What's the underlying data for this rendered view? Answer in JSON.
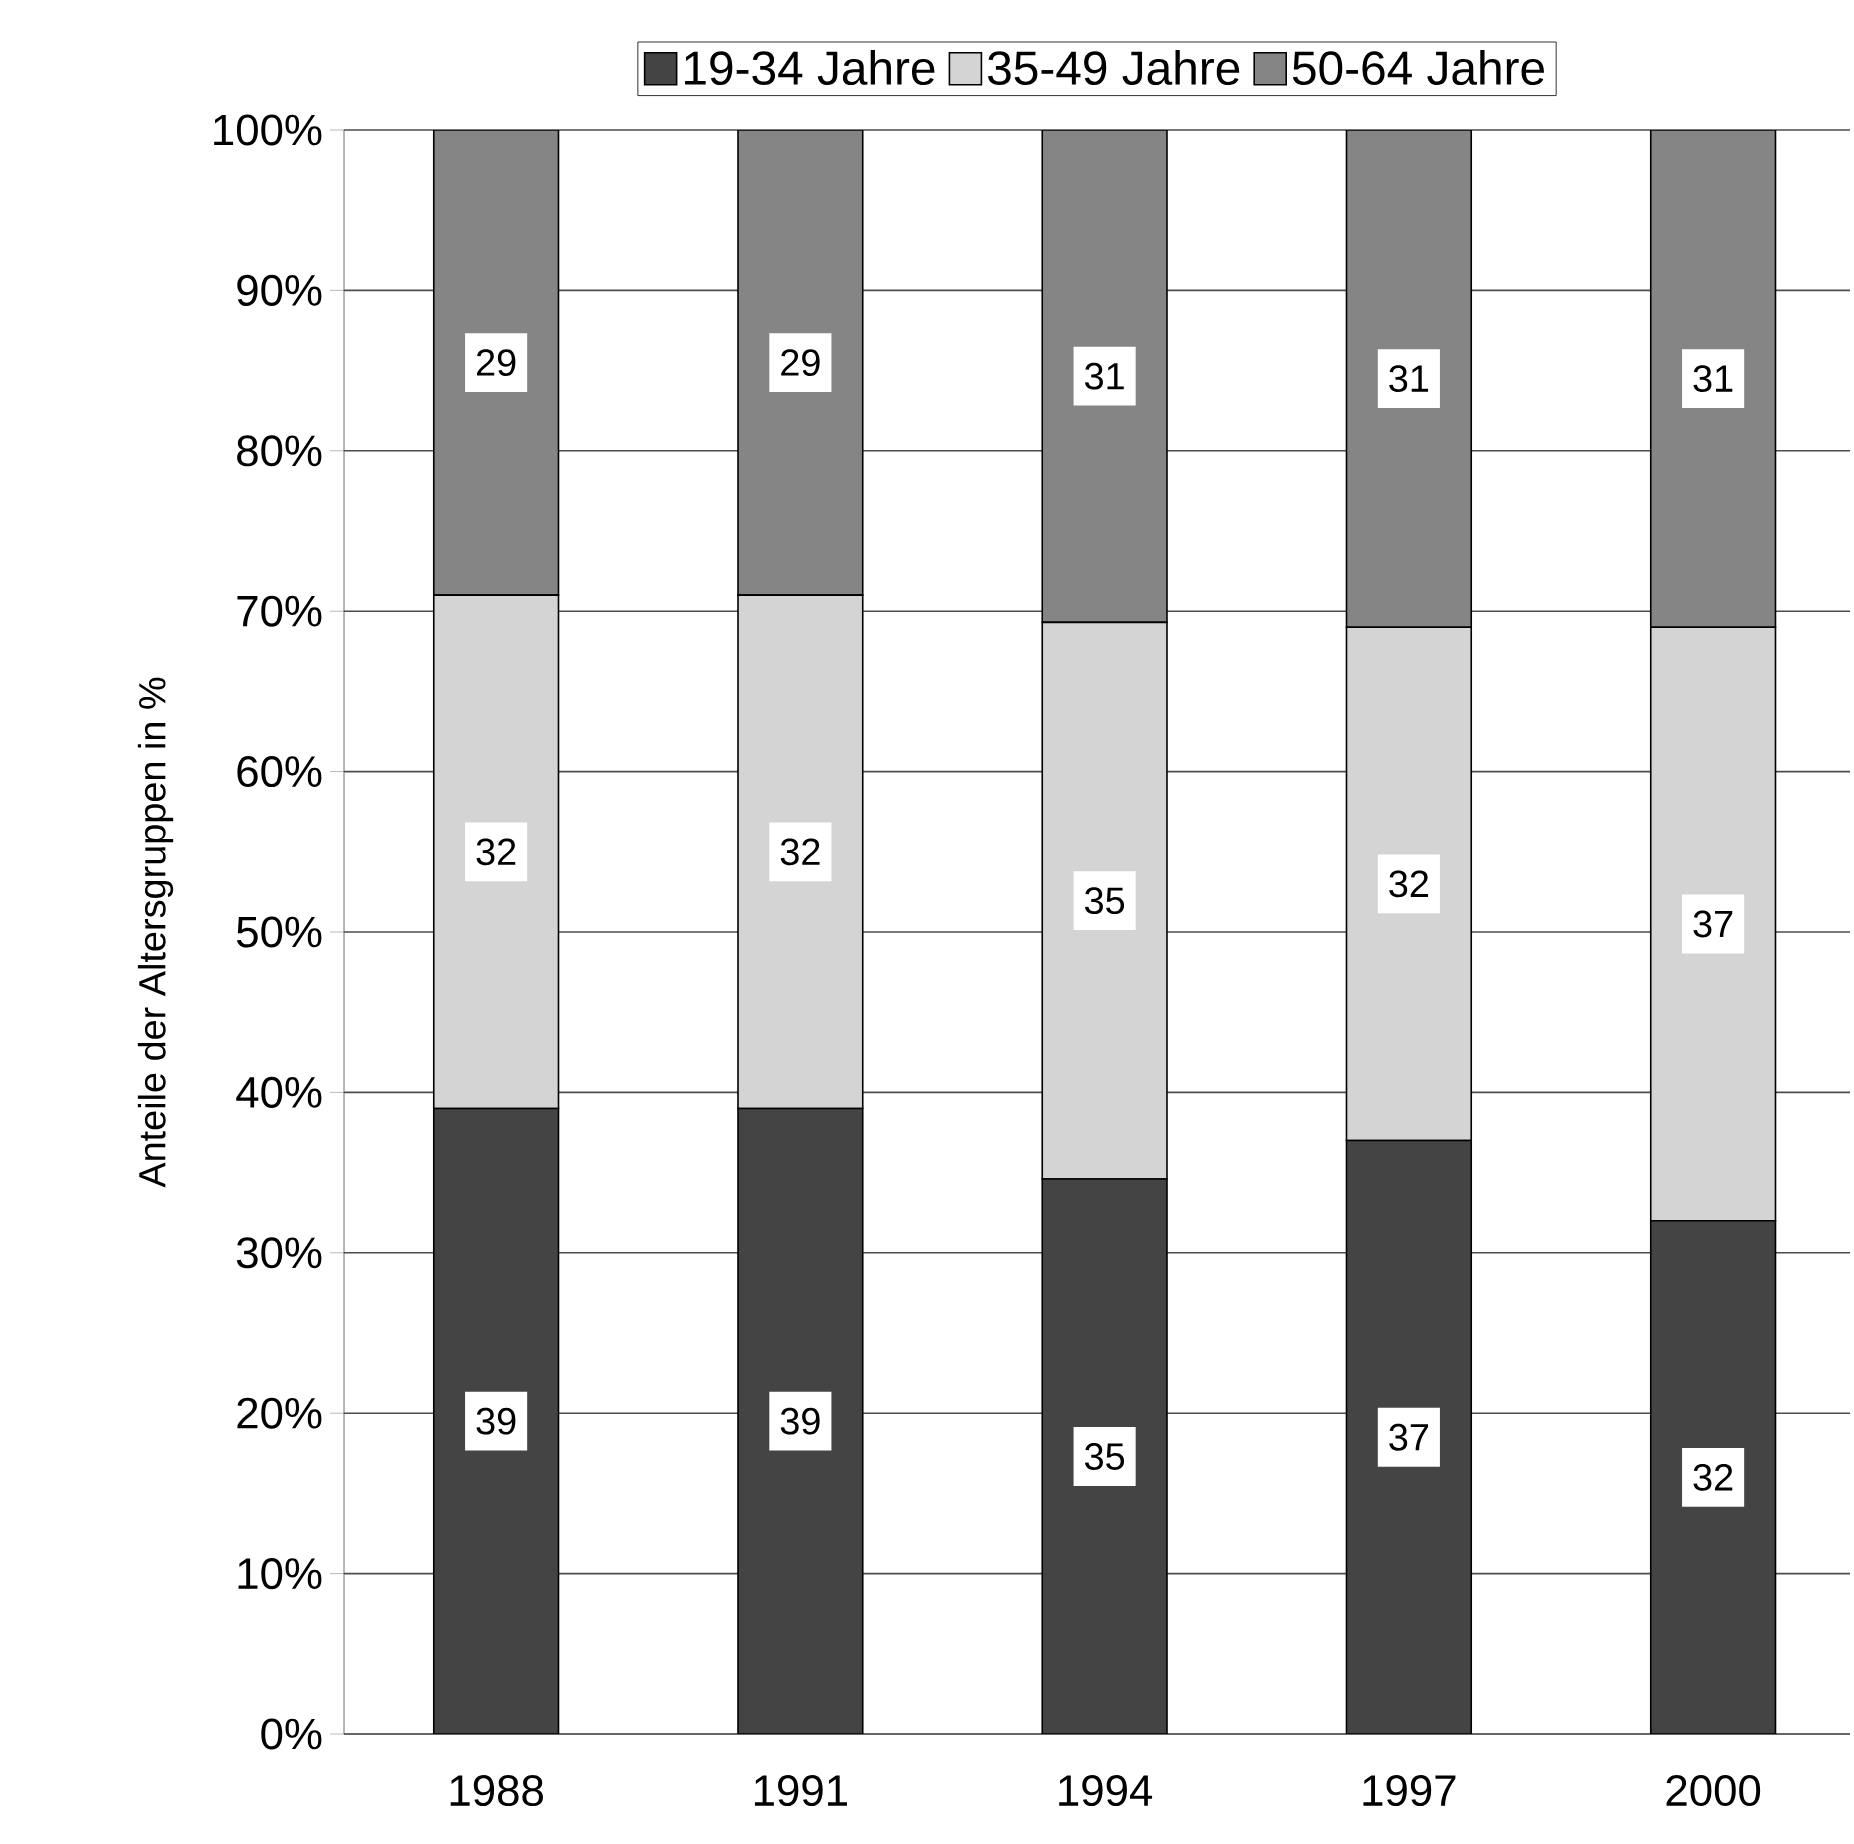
{
  "chart_data": {
    "type": "bar",
    "stacked": true,
    "ylabel": "Anteile der Altersgruppen in %",
    "categories": [
      "1988",
      "1991",
      "1994",
      "1997",
      "2000"
    ],
    "series": [
      {
        "name": "19-34 Jahre",
        "color": "#444444",
        "values": [
          39,
          39,
          34.6,
          37,
          32
        ],
        "value_labels": [
          "39",
          "39",
          "35",
          "37",
          "32"
        ]
      },
      {
        "name": "35-49 Jahre",
        "color": "#d4d4d4",
        "values": [
          32,
          32,
          34.7,
          32,
          37
        ],
        "value_labels": [
          "32",
          "32",
          "35",
          "32",
          "37"
        ]
      },
      {
        "name": "50-64 Jahre",
        "color": "#858585",
        "values": [
          29,
          29,
          30.7,
          31,
          31
        ],
        "value_labels": [
          "29",
          "29",
          "31",
          "31",
          "31"
        ]
      }
    ],
    "ylim": [
      0,
      100
    ],
    "yticks": [
      {
        "value": 0,
        "label": "0%"
      },
      {
        "value": 10,
        "label": "10%"
      },
      {
        "value": 20,
        "label": "20%"
      },
      {
        "value": 30,
        "label": "30%"
      },
      {
        "value": 40,
        "label": "40%"
      },
      {
        "value": 50,
        "label": "50%"
      },
      {
        "value": 60,
        "label": "60%"
      },
      {
        "value": 70,
        "label": "70%"
      },
      {
        "value": 80,
        "label": "80%"
      },
      {
        "value": 90,
        "label": "90%"
      },
      {
        "value": 100,
        "label": "100%"
      }
    ],
    "grid": "y",
    "legend": "top"
  }
}
